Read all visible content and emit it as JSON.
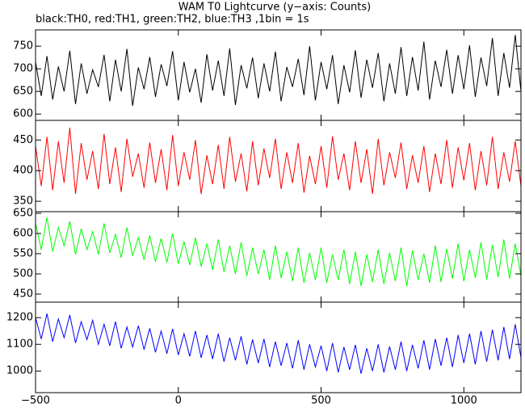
{
  "chart_data": {
    "type": "line",
    "title": "WAM T0 Lightcurve (y−axis: Counts)",
    "subtitle": "black:TH0, red:TH1, green:TH2, blue:TH3 ,1bin = 1s",
    "xlim": [
      -500,
      1200
    ],
    "xticks": [
      {
        "value": -500,
        "label": "−500"
      },
      0,
      500,
      1000
    ],
    "x": [
      -500,
      -480,
      -460,
      -440,
      -420,
      -400,
      -380,
      -360,
      -340,
      -320,
      -300,
      -280,
      -260,
      -240,
      -220,
      -200,
      -180,
      -160,
      -140,
      -120,
      -100,
      -80,
      -60,
      -40,
      -20,
      0,
      20,
      40,
      60,
      80,
      100,
      120,
      140,
      160,
      180,
      200,
      220,
      240,
      260,
      280,
      300,
      320,
      340,
      360,
      380,
      400,
      420,
      440,
      460,
      480,
      500,
      520,
      540,
      560,
      580,
      600,
      620,
      640,
      660,
      680,
      700,
      720,
      740,
      760,
      780,
      800,
      820,
      840,
      860,
      880,
      900,
      920,
      940,
      960,
      980,
      1000,
      1020,
      1040,
      1060,
      1080,
      1100,
      1120,
      1140,
      1160,
      1180,
      1200
    ],
    "panels": [
      {
        "ylim": [
          586,
          786
        ],
        "yticks": [
          600,
          650,
          700,
          750
        ],
        "series": [
          {
            "color": "#000000",
            "values": [
              715,
              640,
              728,
              632,
              705,
              650,
              740,
              622,
              712,
              645,
              698,
              660,
              731,
              628,
              720,
              650,
              744,
              618,
              703,
              655,
              726,
              638,
              710,
              662,
              739,
              630,
              715,
              648,
              700,
              625,
              732,
              652,
              718,
              640,
              745,
              620,
              708,
              657,
              725,
              635,
              712,
              650,
              738,
              628,
              704,
              660,
              722,
              642,
              750,
              630,
              715,
              655,
              730,
              622,
              708,
              648,
              741,
              636,
              720,
              658,
              735,
              628,
              712,
              645,
              748,
              640,
              726,
              652,
              760,
              632,
              718,
              660,
              742,
              645,
              730,
              655,
              752,
              638,
              725,
              662,
              768,
              640,
              735,
              658,
              775,
              650
            ]
          }
        ]
      },
      {
        "ylim": [
          333,
          482
        ],
        "yticks": [
          350,
          400,
          450
        ],
        "series": [
          {
            "color": "#ff0000",
            "values": [
              440,
              375,
              455,
              368,
              448,
              380,
              470,
              362,
              445,
              385,
              432,
              370,
              460,
              378,
              438,
              365,
              452,
              390,
              428,
              372,
              446,
              380,
              435,
              368,
              458,
              375,
              430,
              385,
              450,
              362,
              425,
              378,
              442,
              370,
              455,
              382,
              428,
              366,
              448,
              376,
              436,
              388,
              452,
              370,
              430,
              380,
              445,
              364,
              424,
              378,
              440,
              372,
              456,
              385,
              428,
              368,
              448,
              380,
              435,
              362,
              452,
              376,
              430,
              388,
              446,
              370,
              425,
              380,
              440,
              365,
              428,
              378,
              450,
              372,
              438,
              384,
              445,
              368,
              432,
              376,
              455,
              370,
              430,
              382,
              448,
              375
            ]
          }
        ]
      },
      {
        "ylim": [
          430,
          654
        ],
        "yticks": [
          450,
          500,
          550,
          600,
          650
        ],
        "series": [
          {
            "color": "#00ff00",
            "values": [
              625,
              560,
              640,
              555,
              615,
              570,
              630,
              548,
              612,
              560,
              605,
              548,
              625,
              552,
              598,
              540,
              615,
              545,
              590,
              535,
              595,
              530,
              588,
              528,
              600,
              525,
              580,
              522,
              590,
              518,
              575,
              510,
              585,
              505,
              570,
              500,
              578,
              495,
              565,
              500,
              560,
              485,
              570,
              490,
              555,
              482,
              565,
              478,
              552,
              485,
              565,
              478,
              548,
              485,
              560,
              475,
              555,
              470,
              548,
              480,
              560,
              475,
              552,
              482,
              565,
              470,
              558,
              485,
              550,
              478,
              570,
              480,
              562,
              488,
              575,
              482,
              560,
              490,
              578,
              486,
              572,
              492,
              585,
              488,
              575,
              495
            ]
          }
        ]
      },
      {
        "ylim": [
          919,
          1258
        ],
        "yticks": [
          1000,
          1100,
          1200
        ],
        "series": [
          {
            "color": "#0000ff",
            "values": [
              1200,
              1120,
              1215,
              1110,
              1195,
              1125,
              1210,
              1105,
              1185,
              1118,
              1190,
              1100,
              1175,
              1095,
              1185,
              1085,
              1165,
              1090,
              1170,
              1080,
              1160,
              1070,
              1150,
              1065,
              1158,
              1060,
              1140,
              1055,
              1150,
              1050,
              1135,
              1045,
              1140,
              1035,
              1125,
              1040,
              1130,
              1025,
              1118,
              1030,
              1120,
              1015,
              1110,
              1020,
              1105,
              1010,
              1115,
              1005,
              1100,
              1015,
              1095,
              1000,
              1105,
              995,
              1090,
              1005,
              1098,
              990,
              1085,
              1000,
              1100,
              995,
              1092,
              1005,
              1110,
              1000,
              1098,
              1010,
              1115,
              1005,
              1120,
              1020,
              1125,
              1015,
              1135,
              1030,
              1140,
              1025,
              1150,
              1035,
              1155,
              1040,
              1165,
              1045,
              1175,
              1050
            ]
          }
        ]
      }
    ]
  }
}
